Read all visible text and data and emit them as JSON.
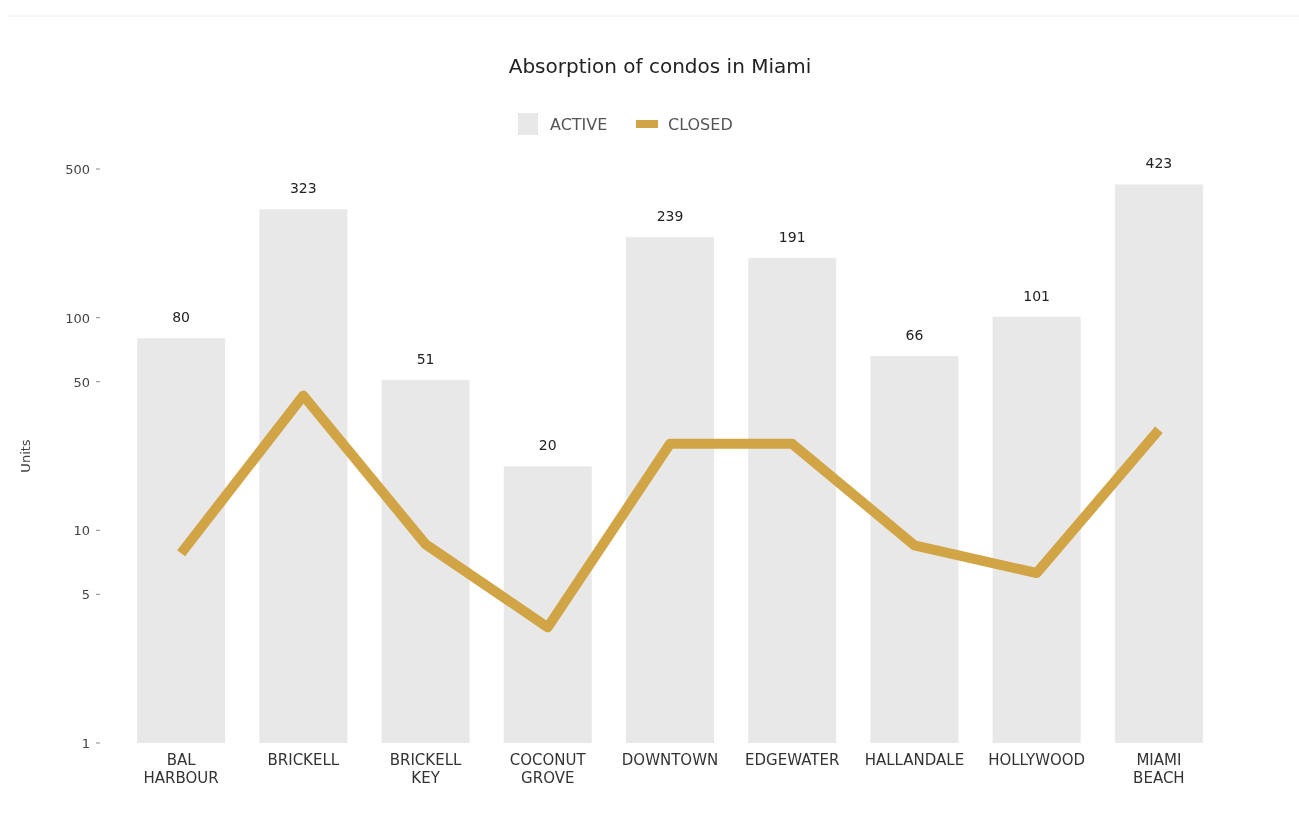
{
  "chart_data": {
    "type": "bar",
    "title": "Absorption of condos in Miami",
    "ylabel": "Units",
    "categories": [
      "BAL HARBOUR",
      "BRICKELL",
      "BRICKELL KEY",
      "COCONUT GROVE",
      "DOWNTOWN",
      "EDGEWATER",
      "HALLANDALE",
      "HOLLYWOOD",
      "MIAMI BEACH"
    ],
    "series": [
      {
        "name": "ACTIVE",
        "color": "#e8e8e8",
        "values": [
          80,
          323,
          51,
          20,
          239,
          191,
          66,
          101,
          423
        ],
        "value_labels": [
          "80",
          "323",
          "51",
          "20",
          "239",
          "191",
          "66",
          "101",
          "423"
        ]
      },
      {
        "name": "CLOSED",
        "type": "line",
        "color": "#d1a446",
        "values": [
          7.8,
          43,
          8.6,
          3.5,
          25.5,
          25.5,
          8.5,
          6.3,
          29.7
        ]
      }
    ],
    "log": "y",
    "ylim": [
      1,
      500
    ],
    "yticks": [
      1,
      5,
      10,
      50,
      100,
      500
    ],
    "legend": "top",
    "grid": false
  }
}
